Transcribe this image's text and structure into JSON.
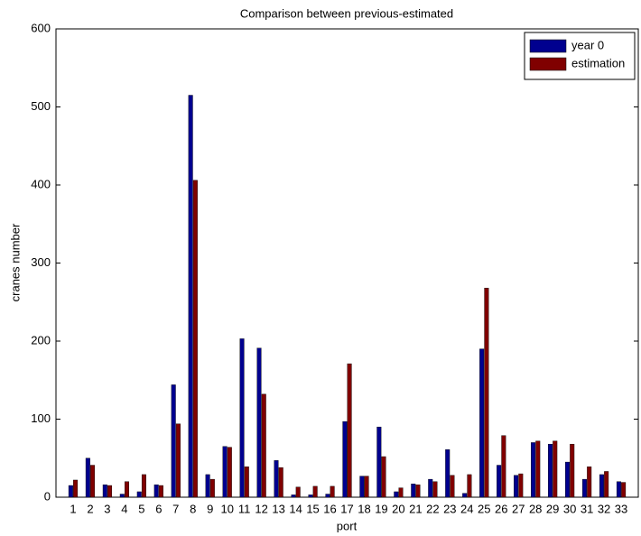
{
  "chart_data": {
    "type": "bar",
    "title": "Comparison between previous-estimated",
    "x_label": "port",
    "y_label": "cranes number",
    "categories": [
      "1",
      "2",
      "3",
      "4",
      "5",
      "6",
      "7",
      "8",
      "9",
      "10",
      "11",
      "12",
      "13",
      "14",
      "15",
      "16",
      "17",
      "18",
      "19",
      "20",
      "21",
      "22",
      "23",
      "24",
      "25",
      "26",
      "27",
      "28",
      "29",
      "30",
      "31",
      "32",
      "33"
    ],
    "series": [
      {
        "name": "year 0",
        "color": "#00008f",
        "values": [
          15,
          50,
          16,
          4,
          7,
          16,
          144,
          515,
          29,
          65,
          203,
          191,
          47,
          3,
          3,
          4,
          97,
          27,
          90,
          7,
          17,
          23,
          61,
          5,
          190,
          41,
          28,
          70,
          68,
          45,
          23,
          29,
          20
        ]
      },
      {
        "name": "estimation",
        "color": "#800000",
        "values": [
          22,
          41,
          15,
          20,
          29,
          15,
          94,
          406,
          23,
          64,
          39,
          132,
          38,
          13,
          14,
          14,
          171,
          27,
          52,
          12,
          16,
          20,
          28,
          29,
          268,
          79,
          30,
          72,
          72,
          68,
          39,
          33,
          19
        ]
      }
    ],
    "ylim": [
      0,
      600
    ],
    "yticks": [
      0,
      100,
      200,
      300,
      400,
      500,
      600
    ],
    "legend": "northeast"
  }
}
